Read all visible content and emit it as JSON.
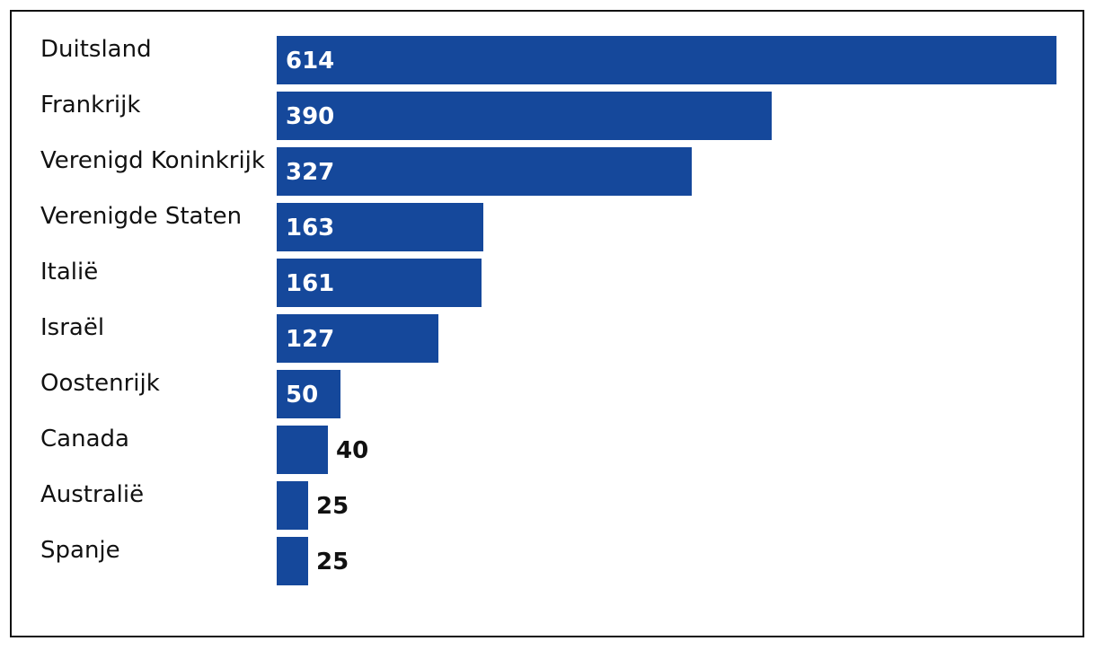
{
  "chart_data": {
    "type": "bar",
    "orientation": "horizontal",
    "title": "",
    "xlabel": "",
    "ylabel": "",
    "categories": [
      "Duitsland",
      "Frankrijk",
      "Verenigd Koninkrijk",
      "Verenigde Staten",
      "Italië",
      "Israël",
      "Oostenrijk",
      "Canada",
      "Australië",
      "Spanje"
    ],
    "values": [
      614,
      390,
      327,
      163,
      161,
      127,
      50,
      40,
      25,
      25
    ],
    "xlim": [
      0,
      614
    ],
    "grid": false,
    "legend": "none",
    "colors": {
      "bar": "#15489b",
      "label_inside": "#ffffff",
      "label_outside": "#111111",
      "text": "#111111",
      "frame": "#111111"
    }
  }
}
